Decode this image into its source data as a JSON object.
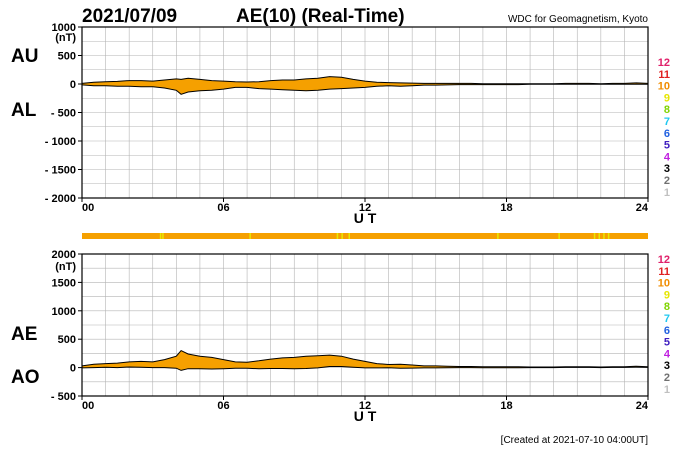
{
  "header": {
    "date": "2021/07/09",
    "title": "AE(10) (Real-Time)",
    "source": "WDC for Geomagnetism, Kyoto"
  },
  "footer": {
    "created": "[Created at 2021-07-10 04:00UT]"
  },
  "station_legend": {
    "items": [
      {
        "label": "12",
        "color": "#e0206a"
      },
      {
        "label": "11",
        "color": "#e02020"
      },
      {
        "label": "10",
        "color": "#f08c00"
      },
      {
        "label": "9",
        "color": "#e6e600"
      },
      {
        "label": "8",
        "color": "#7fd400"
      },
      {
        "label": "7",
        "color": "#20c8f0"
      },
      {
        "label": "6",
        "color": "#2060e0"
      },
      {
        "label": "5",
        "color": "#4020c0"
      },
      {
        "label": "4",
        "color": "#c020e0"
      },
      {
        "label": "3",
        "color": "#000000"
      },
      {
        "label": "2",
        "color": "#707070"
      },
      {
        "label": "1",
        "color": "#c0c0c0"
      }
    ]
  },
  "colors": {
    "fill": "#f5a000",
    "line": "#000000",
    "grid": "#b4b4b4",
    "bar_highlight": "#e8e800"
  },
  "chart_data": [
    {
      "type": "area",
      "unit": "(nT)",
      "xlabel": "U T",
      "series_labels": [
        "AU",
        "AL"
      ],
      "xlim": [
        0,
        24
      ],
      "ylim": [
        -2000,
        1000
      ],
      "xticks": [
        0,
        6,
        12,
        18,
        24
      ],
      "xtick_labels": [
        "00",
        "06",
        "12",
        "18",
        "24"
      ],
      "yticks": [
        1000,
        500,
        0,
        -500,
        -1000,
        -1500,
        -2000
      ],
      "ytick_labels": [
        "1000",
        "500",
        "0",
        "- 500",
        "- 1000",
        "- 1500",
        "- 2000"
      ],
      "grid": true,
      "x": [
        0,
        0.5,
        1,
        1.5,
        2,
        2.5,
        3,
        3.5,
        4,
        4.2,
        4.5,
        5,
        5.5,
        6,
        6.5,
        7,
        7.5,
        8,
        8.5,
        9,
        9.5,
        10,
        10.5,
        11,
        11.5,
        12,
        12.5,
        13,
        13.5,
        14,
        14.5,
        15,
        15.5,
        16,
        16.5,
        17,
        17.5,
        18,
        18.5,
        19,
        19.5,
        20,
        20.5,
        21,
        21.5,
        22,
        22.5,
        23,
        23.5,
        24
      ],
      "upper": [
        10,
        30,
        40,
        45,
        60,
        60,
        50,
        70,
        90,
        80,
        100,
        80,
        60,
        50,
        40,
        35,
        40,
        60,
        70,
        70,
        90,
        100,
        130,
        120,
        80,
        50,
        30,
        25,
        20,
        15,
        10,
        10,
        10,
        10,
        10,
        5,
        5,
        5,
        5,
        5,
        5,
        5,
        10,
        10,
        10,
        5,
        10,
        10,
        20,
        10
      ],
      "lower": [
        -15,
        -30,
        -30,
        -40,
        -40,
        -50,
        -50,
        -70,
        -110,
        -180,
        -140,
        -120,
        -110,
        -90,
        -60,
        -60,
        -80,
        -90,
        -100,
        -110,
        -120,
        -110,
        -90,
        -80,
        -70,
        -60,
        -40,
        -30,
        -40,
        -30,
        -20,
        -20,
        -15,
        -10,
        -10,
        -10,
        -10,
        -10,
        -10,
        -5,
        -5,
        -5,
        -5,
        -5,
        -5,
        -5,
        -5,
        -5,
        -5,
        -5
      ]
    },
    {
      "type": "area",
      "unit": "(nT)",
      "xlabel": "U T",
      "series_labels": [
        "AE",
        "AO"
      ],
      "xlim": [
        0,
        24
      ],
      "ylim": [
        -500,
        2000
      ],
      "xticks": [
        0,
        6,
        12,
        18,
        24
      ],
      "xtick_labels": [
        "00",
        "06",
        "12",
        "18",
        "24"
      ],
      "yticks": [
        2000,
        1500,
        1000,
        500,
        0,
        -500
      ],
      "ytick_labels": [
        "2000",
        "1500",
        "1000",
        "500",
        "0",
        "- 500"
      ],
      "grid": true,
      "x": [
        0,
        0.5,
        1,
        1.5,
        2,
        2.5,
        3,
        3.5,
        4,
        4.2,
        4.5,
        5,
        5.5,
        6,
        6.5,
        7,
        7.5,
        8,
        8.5,
        9,
        9.5,
        10,
        10.5,
        11,
        11.5,
        12,
        12.5,
        13,
        13.5,
        14,
        14.5,
        15,
        15.5,
        16,
        16.5,
        17,
        17.5,
        18,
        18.5,
        19,
        19.5,
        20,
        20.5,
        21,
        21.5,
        22,
        22.5,
        23,
        23.5,
        24
      ],
      "upper": [
        30,
        60,
        70,
        80,
        100,
        110,
        100,
        140,
        200,
        300,
        240,
        200,
        180,
        140,
        100,
        95,
        120,
        150,
        170,
        180,
        200,
        210,
        220,
        200,
        150,
        110,
        70,
        55,
        60,
        45,
        30,
        30,
        25,
        20,
        20,
        15,
        15,
        15,
        15,
        10,
        10,
        10,
        15,
        15,
        15,
        10,
        15,
        15,
        25,
        15
      ],
      "lower": [
        -5,
        0,
        5,
        0,
        10,
        5,
        0,
        0,
        -10,
        -50,
        -20,
        -20,
        -25,
        -20,
        -10,
        -12,
        -20,
        -15,
        -15,
        -20,
        -15,
        -5,
        20,
        20,
        5,
        -5,
        -5,
        -3,
        -10,
        -8,
        -5,
        -5,
        -3,
        0,
        0,
        -3,
        -3,
        -3,
        -3,
        0,
        0,
        0,
        3,
        3,
        3,
        0,
        3,
        3,
        8,
        3
      ]
    }
  ]
}
